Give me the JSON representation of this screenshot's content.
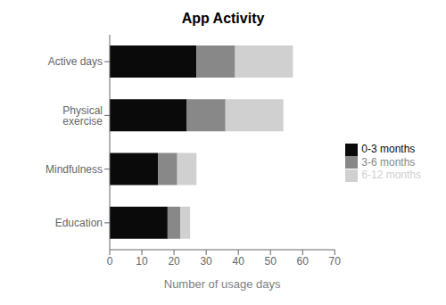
{
  "chart_data": {
    "type": "bar",
    "orientation": "horizontal",
    "stacked": true,
    "title": "App Activity",
    "xlabel": "Number of usage days",
    "categories": [
      "Education",
      "Mindfulness",
      "Physical exercise",
      "Active days"
    ],
    "series": [
      {
        "name": "0-3 months",
        "color": "#0a0a0a",
        "values": [
          18,
          15,
          24,
          27
        ]
      },
      {
        "name": "3-6 months",
        "color": "#888888",
        "values": [
          4,
          6,
          12,
          12
        ]
      },
      {
        "name": "6-12 months",
        "color": "#d0d0d0",
        "values": [
          3,
          6,
          18,
          18
        ]
      }
    ],
    "xlim": [
      0,
      70
    ],
    "xticks": [
      0,
      10,
      20,
      30,
      40,
      50,
      60,
      70
    ],
    "grid": false,
    "legend": "right"
  }
}
